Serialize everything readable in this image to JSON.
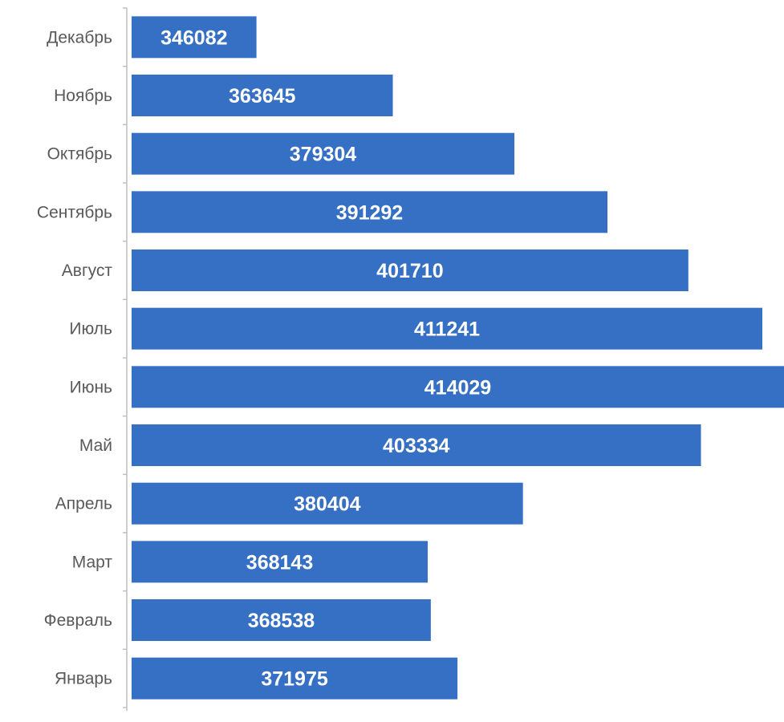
{
  "chart_data": {
    "type": "bar",
    "orientation": "horizontal",
    "categories": [
      "Январь",
      "Февраль",
      "Март",
      "Апрель",
      "Май",
      "Июнь",
      "Июль",
      "Август",
      "Сентябрь",
      "Октябрь",
      "Ноябрь",
      "Декабрь"
    ],
    "values": [
      371975,
      368538,
      368143,
      380404,
      403334,
      414029,
      411241,
      401710,
      391292,
      379304,
      363645,
      346082
    ],
    "title": "",
    "xlabel": "",
    "ylabel": "",
    "xlim": [
      330000,
      414029
    ],
    "grid": false,
    "legend": "none",
    "data_labels": true,
    "x_axis_visible": false,
    "bar_color": "#3670C4",
    "data_label_color": "#FFFFFF",
    "category_label_color": "#595959",
    "axis_color": "#BFBFBF"
  }
}
